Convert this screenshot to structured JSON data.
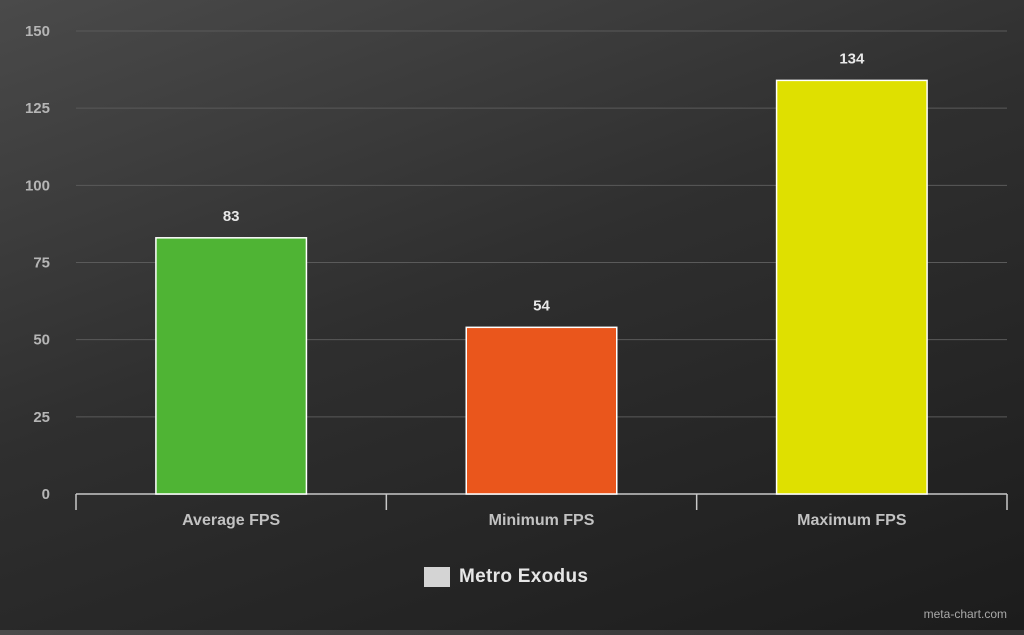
{
  "chart_data": {
    "type": "bar",
    "categories": [
      "Average FPS",
      "Minimum FPS",
      "Maximum FPS"
    ],
    "series": [
      {
        "name": "Metro Exodus",
        "values": [
          83,
          54,
          134
        ]
      }
    ],
    "bar_colors": [
      "#4fb434",
      "#ea561c",
      "#dfe000"
    ],
    "data_labels": [
      "83",
      "54",
      "134"
    ],
    "ylim": [
      0,
      150
    ],
    "yticks": [
      0,
      25,
      50,
      75,
      100,
      125,
      150
    ],
    "grid": true,
    "legend_position": "bottom-center",
    "legend_swatch_color": "#d4d4d4"
  },
  "watermark": "meta-chart.com"
}
